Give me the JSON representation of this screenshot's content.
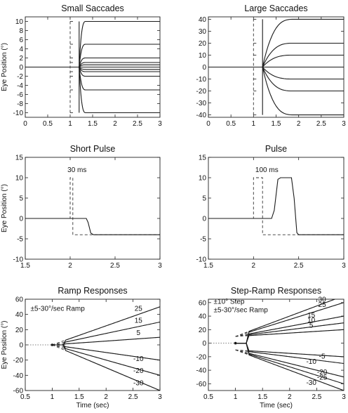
{
  "chart_data": [
    {
      "id": "small-saccades",
      "type": "line",
      "title": "Small Saccades",
      "xlabel": "",
      "ylabel": "Eye Position (°)",
      "xlim": [
        0,
        3
      ],
      "ylim": [
        -11,
        11
      ],
      "xticks": [
        0,
        0.5,
        1,
        1.5,
        2,
        2.5,
        3
      ],
      "xtick_labels": [
        "0",
        "0.5",
        "1",
        "1.5",
        "2",
        "2.5",
        "3"
      ],
      "yticks": [
        -10,
        -8,
        -6,
        -4,
        -2,
        0,
        2,
        4,
        6,
        8,
        10
      ],
      "ytick_labels": [
        "-10",
        "-8",
        "-6",
        "-4",
        "-2",
        "0",
        "2",
        "4",
        "6",
        "8",
        "10"
      ],
      "grid": false,
      "series": [
        {
          "style": "solid",
          "kind": "saccade",
          "onset": 1.2,
          "settle": 1.35,
          "amplitudes": [
            10,
            5,
            2,
            1,
            0.5,
            -0.5,
            -1,
            -2,
            -5,
            -10
          ],
          "overshoot": 0.3
        }
      ],
      "target": {
        "style": "dashed",
        "step_time": 1.0,
        "amplitudes": [
          10,
          -10,
          5,
          -5,
          2,
          -2,
          1,
          -1
        ]
      },
      "annotations": []
    },
    {
      "id": "large-saccades",
      "type": "line",
      "title": "Large Saccades",
      "xlabel": "",
      "ylabel": "",
      "xlim": [
        0,
        3
      ],
      "ylim": [
        -42,
        42
      ],
      "xticks": [
        0,
        0.5,
        1,
        1.5,
        2,
        2.5,
        3
      ],
      "xtick_labels": [
        "0",
        "0.5",
        "1",
        "1.5",
        "2",
        "2.5",
        "3"
      ],
      "yticks": [
        -40,
        -30,
        -20,
        -10,
        0,
        10,
        20,
        30,
        40
      ],
      "ytick_labels": [
        "-40",
        "-30",
        "-20",
        "-10",
        "0",
        "10",
        "20",
        "30",
        "40"
      ],
      "grid": false,
      "series": [
        {
          "style": "solid",
          "kind": "saccade",
          "onset": 1.2,
          "settle": 1.9,
          "amplitudes": [
            40,
            20,
            10,
            -10,
            -20,
            -40
          ],
          "overshoot": 0
        }
      ],
      "target": {
        "style": "dashed",
        "step_time": 1.0,
        "amplitudes": [
          40,
          -40,
          20,
          -20,
          10,
          -10
        ]
      },
      "annotations": []
    },
    {
      "id": "short-pulse",
      "type": "line",
      "title": "Short Pulse",
      "xlabel": "",
      "ylabel": "Eye Position (°)",
      "xlim": [
        1.5,
        3
      ],
      "ylim": [
        -10,
        15
      ],
      "xticks": [
        1.5,
        2,
        2.5,
        3
      ],
      "xtick_labels": [
        "1.5",
        "2",
        "2.5",
        "3"
      ],
      "yticks": [
        -10,
        -5,
        0,
        5,
        10,
        15
      ],
      "ytick_labels": [
        "-10",
        "-5",
        "0",
        "5",
        "10",
        "15"
      ],
      "grid": false,
      "target_points": [
        [
          1.5,
          0
        ],
        [
          2.0,
          0
        ],
        [
          2.0,
          10
        ],
        [
          2.03,
          10
        ],
        [
          2.03,
          -4
        ],
        [
          3.0,
          -4
        ]
      ],
      "eye_points": [
        [
          1.5,
          0
        ],
        [
          2.18,
          0
        ],
        [
          2.2,
          -1
        ],
        [
          2.23,
          -3.6
        ],
        [
          2.26,
          -4
        ],
        [
          3.0,
          -4
        ]
      ],
      "annotations": [
        {
          "text": "30 ms",
          "x": 1.97,
          "y": 11.4
        }
      ]
    },
    {
      "id": "pulse",
      "type": "line",
      "title": "Pulse",
      "xlabel": "",
      "ylabel": "",
      "xlim": [
        1.5,
        3
      ],
      "ylim": [
        -10,
        15
      ],
      "xticks": [
        1.5,
        2,
        2.5,
        3
      ],
      "xtick_labels": [
        "1.5",
        "2",
        "2.5",
        "3"
      ],
      "yticks": [
        -10,
        -5,
        0,
        5,
        10,
        15
      ],
      "ytick_labels": [
        "-10",
        "-5",
        "0",
        "5",
        "10",
        "15"
      ],
      "grid": false,
      "target_points": [
        [
          1.5,
          0
        ],
        [
          2.0,
          0
        ],
        [
          2.0,
          10
        ],
        [
          2.1,
          10
        ],
        [
          2.1,
          -4
        ],
        [
          3.0,
          -4
        ]
      ],
      "eye_points": [
        [
          1.5,
          0
        ],
        [
          2.2,
          0
        ],
        [
          2.23,
          2
        ],
        [
          2.27,
          9.6
        ],
        [
          2.3,
          10
        ],
        [
          2.42,
          10
        ],
        [
          2.45,
          5
        ],
        [
          2.48,
          -3.5
        ],
        [
          2.5,
          -4
        ],
        [
          3.0,
          -4
        ]
      ],
      "annotations": [
        {
          "text": "100 ms",
          "x": 2.02,
          "y": 11.4
        }
      ]
    },
    {
      "id": "ramp-responses",
      "type": "line",
      "title": "Ramp Responses",
      "xlabel": "Time (sec)",
      "ylabel": "Eye Position (°)",
      "xlim": [
        0.5,
        3
      ],
      "ylim": [
        -60,
        60
      ],
      "xticks": [
        0.5,
        1,
        1.5,
        2,
        2.5,
        3
      ],
      "xtick_labels": [
        "0.5",
        "1",
        "1.5",
        "2",
        "2.5",
        "3"
      ],
      "yticks": [
        -60,
        -40,
        -20,
        0,
        20,
        40,
        60
      ],
      "ytick_labels": [
        "-60",
        "-40",
        "-20",
        "0",
        "20",
        "40",
        "60"
      ],
      "grid": false,
      "ramp_start": 1.0,
      "series": [
        {
          "label": "25",
          "velocity": 25
        },
        {
          "label": "15",
          "velocity": 15
        },
        {
          "label": "5",
          "velocity": 5
        },
        {
          "label": "-10",
          "velocity": -10
        },
        {
          "label": "-20",
          "velocity": -20
        },
        {
          "label": "-30",
          "velocity": -30
        }
      ],
      "annotations": [
        {
          "text": "±5-30°/sec Ramp",
          "x": 0.52,
          "y": 45
        }
      ]
    },
    {
      "id": "step-ramp-responses",
      "type": "line",
      "title": "Step-Ramp Responses",
      "xlabel": "Time (sec)",
      "ylabel": "",
      "xlim": [
        0.5,
        3
      ],
      "ylim": [
        -70,
        65
      ],
      "xticks": [
        0.5,
        1,
        1.5,
        2,
        2.5,
        3
      ],
      "xtick_labels": [
        "0.5",
        "1",
        "1.5",
        "2",
        "2.5",
        "3"
      ],
      "yticks": [
        -60,
        -40,
        -20,
        0,
        20,
        40,
        60
      ],
      "ytick_labels": [
        "-60",
        "-40",
        "-20",
        "0",
        "20",
        "40",
        "60"
      ],
      "grid": false,
      "ramp_start": 1.0,
      "step": 10,
      "series": [
        {
          "label": "25",
          "velocity": 25
        },
        {
          "label": "15",
          "velocity": 15
        },
        {
          "label": "30",
          "velocity": 30
        },
        {
          "label": "5",
          "velocity": 5
        },
        {
          "label": "-5",
          "velocity": -5
        },
        {
          "label": "10",
          "velocity": 10
        },
        {
          "label": "-25",
          "velocity": -25
        },
        {
          "label": "-10",
          "velocity": -10
        },
        {
          "label": "-20",
          "velocity": -20
        },
        {
          "label": "-30",
          "velocity": -30
        }
      ],
      "annotations": [
        {
          "text": "±10° Step",
          "x": 0.52,
          "y": 58
        },
        {
          "text": "±5-30°/sec Ramp",
          "x": 0.52,
          "y": 46
        }
      ]
    }
  ]
}
